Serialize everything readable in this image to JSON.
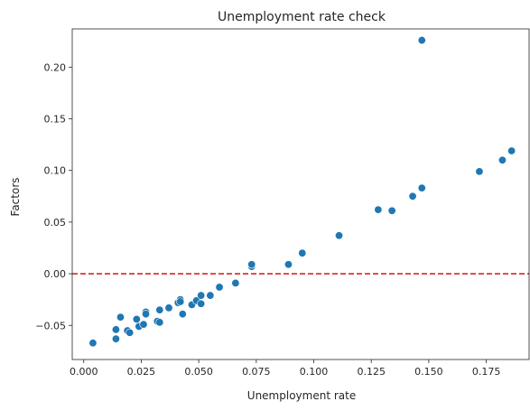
{
  "chart_data": {
    "type": "scatter",
    "title": "Unemployment rate check",
    "xlabel": "Unemployment rate",
    "ylabel": "Factors",
    "xlim": [
      -0.005,
      0.194
    ],
    "ylim": [
      -0.083,
      0.237
    ],
    "xticks": [
      "0.000",
      "0.025",
      "0.050",
      "0.075",
      "0.100",
      "0.125",
      "0.150",
      "0.175"
    ],
    "yticks": [
      "−0.05",
      "0.00",
      "0.05",
      "0.10",
      "0.15",
      "0.20"
    ],
    "grid": false,
    "point_color": "#1f77b4",
    "reference_line": {
      "y": 0.0,
      "style": "dashed",
      "color": "#d62728"
    },
    "points": [
      {
        "x": 0.004,
        "y": -0.067
      },
      {
        "x": 0.014,
        "y": -0.063
      },
      {
        "x": 0.014,
        "y": -0.054
      },
      {
        "x": 0.016,
        "y": -0.042
      },
      {
        "x": 0.019,
        "y": -0.055
      },
      {
        "x": 0.02,
        "y": -0.057
      },
      {
        "x": 0.023,
        "y": -0.044
      },
      {
        "x": 0.024,
        "y": -0.051
      },
      {
        "x": 0.026,
        "y": -0.049
      },
      {
        "x": 0.027,
        "y": -0.037
      },
      {
        "x": 0.027,
        "y": -0.039
      },
      {
        "x": 0.032,
        "y": -0.046
      },
      {
        "x": 0.033,
        "y": -0.047
      },
      {
        "x": 0.033,
        "y": -0.035
      },
      {
        "x": 0.037,
        "y": -0.033
      },
      {
        "x": 0.041,
        "y": -0.028
      },
      {
        "x": 0.042,
        "y": -0.025
      },
      {
        "x": 0.042,
        "y": -0.027
      },
      {
        "x": 0.043,
        "y": -0.039
      },
      {
        "x": 0.047,
        "y": -0.03
      },
      {
        "x": 0.049,
        "y": -0.026
      },
      {
        "x": 0.051,
        "y": -0.021
      },
      {
        "x": 0.051,
        "y": -0.029
      },
      {
        "x": 0.055,
        "y": -0.021
      },
      {
        "x": 0.059,
        "y": -0.013
      },
      {
        "x": 0.066,
        "y": -0.009
      },
      {
        "x": 0.073,
        "y": 0.007
      },
      {
        "x": 0.073,
        "y": 0.009
      },
      {
        "x": 0.089,
        "y": 0.009
      },
      {
        "x": 0.095,
        "y": 0.02
      },
      {
        "x": 0.111,
        "y": 0.037
      },
      {
        "x": 0.128,
        "y": 0.062
      },
      {
        "x": 0.134,
        "y": 0.061
      },
      {
        "x": 0.143,
        "y": 0.075
      },
      {
        "x": 0.147,
        "y": 0.083
      },
      {
        "x": 0.147,
        "y": 0.226
      },
      {
        "x": 0.172,
        "y": 0.099
      },
      {
        "x": 0.182,
        "y": 0.11
      },
      {
        "x": 0.186,
        "y": 0.119
      }
    ]
  }
}
